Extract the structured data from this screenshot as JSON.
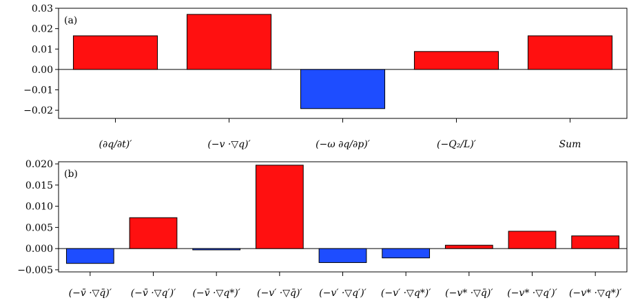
{
  "colors": {
    "positive": "#ff1010",
    "negative": "#1e4dff"
  },
  "chart_data": [
    {
      "type": "bar",
      "panel_label": "(a)",
      "categories": [
        "(∂q/∂t)′",
        "(−v ·▽q)′",
        "(−ω ∂q/∂p)′",
        "(−Q₂/L)′",
        "Sum"
      ],
      "values": [
        0.0165,
        0.027,
        -0.0192,
        0.0088,
        0.0165
      ],
      "ylim": [
        -0.024,
        0.03
      ],
      "yticks": [
        -0.02,
        -0.01,
        0.0,
        0.01,
        0.02,
        0.03
      ],
      "ytick_labels": [
        "−0.02",
        "−0.01",
        "0.00",
        "0.01",
        "0.02",
        "0.03"
      ],
      "title": "",
      "xlabel": "",
      "ylabel": "",
      "grid": false
    },
    {
      "type": "bar",
      "panel_label": "(b)",
      "categories": [
        "(−v̄ ·▽q̄)′",
        "(−v̄ ·▽q′)′",
        "(−v̄ ·▽q*)′",
        "(−v′ ·▽q̄)′",
        "(−v′ ·▽q′)′",
        "(−v′ ·▽q*)′",
        "(−v* ·▽q̄)′",
        "(−v* ·▽q′)′",
        "(−v* ·▽q*)′"
      ],
      "values": [
        -0.0035,
        0.0073,
        -0.0003,
        0.0197,
        -0.0033,
        -0.0022,
        0.0008,
        0.0041,
        0.003
      ],
      "ylim": [
        -0.0055,
        0.0205
      ],
      "yticks": [
        -0.005,
        0.0,
        0.005,
        0.01,
        0.015,
        0.02
      ],
      "ytick_labels": [
        "−0.005",
        "0.000",
        "0.005",
        "0.010",
        "0.015",
        "0.020"
      ],
      "title": "",
      "xlabel": "",
      "ylabel": "",
      "grid": false
    }
  ]
}
